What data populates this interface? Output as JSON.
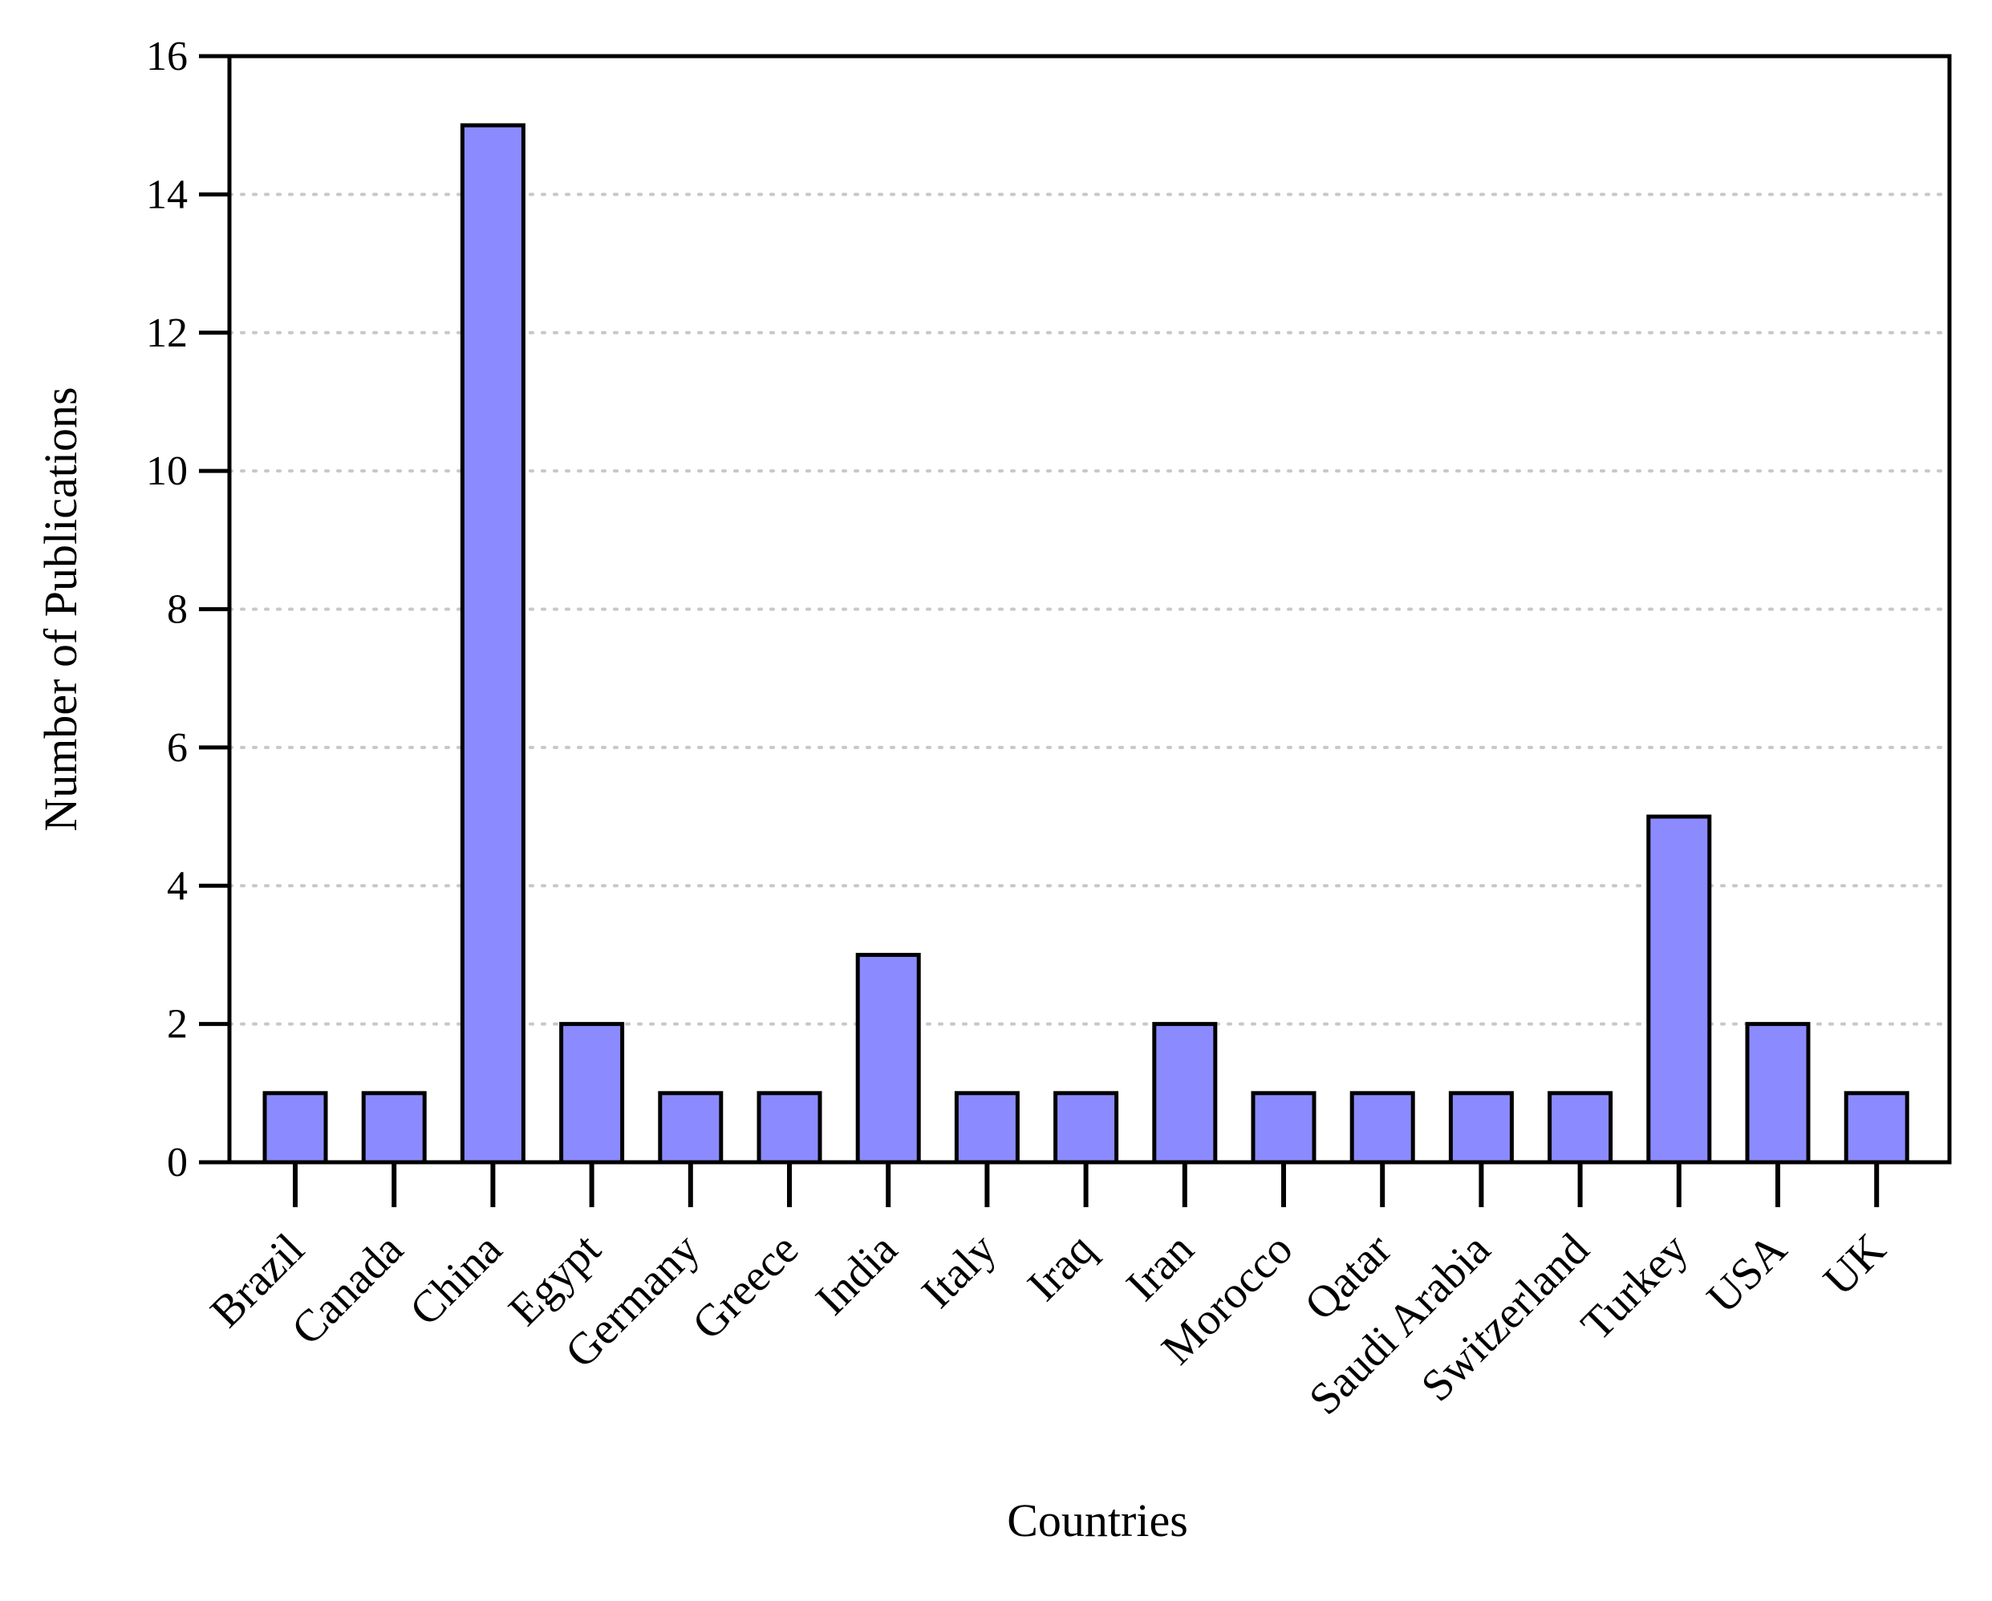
{
  "chart_data": {
    "type": "bar",
    "xlabel": "Countries",
    "ylabel": "Number of Publications",
    "ylim": [
      0,
      16
    ],
    "yticks": [
      0,
      2,
      4,
      6,
      8,
      10,
      12,
      14,
      16
    ],
    "grid": "horizontal dotted",
    "categories": [
      "Brazil",
      "Canada",
      "China",
      "Egypt",
      "Germany",
      "Greece",
      "India",
      "Italy",
      "Iraq",
      "Iran",
      "Morocco",
      "Qatar",
      "Saudi Arabia",
      "Switzerland",
      "Turkey",
      "USA",
      "UK"
    ],
    "values": [
      1,
      1,
      15,
      2,
      1,
      1,
      3,
      1,
      1,
      2,
      1,
      1,
      1,
      1,
      5,
      2,
      1
    ],
    "colors": {
      "bar_fill": "#8b8bff",
      "bar_stroke": "#000000",
      "grid": "#c8c8c8"
    }
  }
}
